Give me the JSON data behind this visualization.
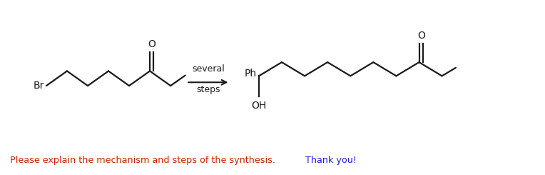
{
  "bg_color": "#ccc8be",
  "white_bg": "#ffffff",
  "text_color_red": "#cc2200",
  "text_color_blue": "#1a1aee",
  "arrow_label_line1": "several",
  "arrow_label_line2": "steps",
  "br_label": "Br",
  "o_label1": "O",
  "o_label2": "O",
  "ph_label": "Ph",
  "oh_label": "OH",
  "lw": 1.6,
  "fig_width": 7.64,
  "fig_height": 2.45,
  "dpi": 100
}
